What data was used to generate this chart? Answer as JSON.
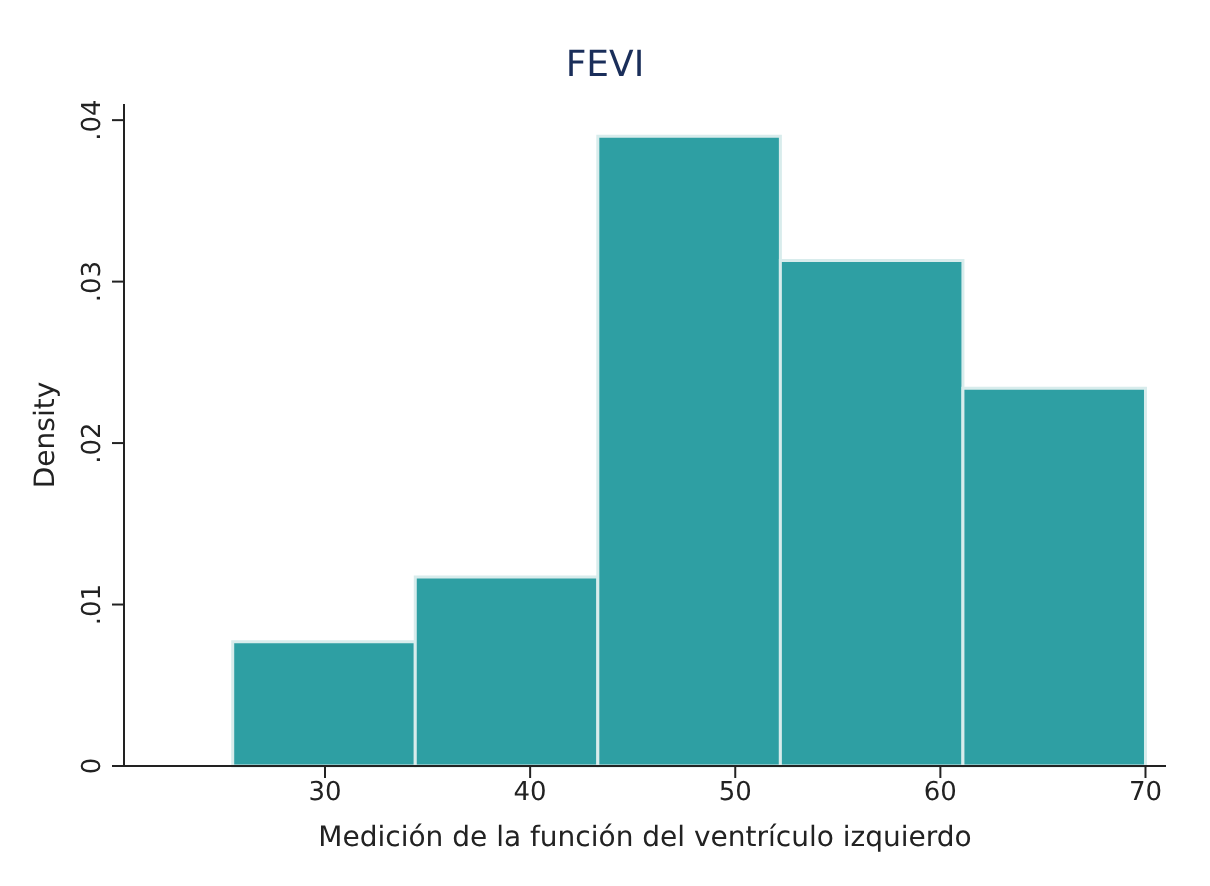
{
  "chart_data": {
    "type": "histogram",
    "title": "FEVI",
    "xlabel": "Medición de la función del ventrículo izquierdo",
    "ylabel": "Density",
    "bins": [
      25.5,
      34.4,
      43.3,
      52.2,
      61.1,
      70
    ],
    "values": [
      0.0077,
      0.0117,
      0.039,
      0.0313,
      0.0234
    ],
    "color": "#2e9fa3",
    "xlim": [
      20.2,
      71
    ],
    "xticks": [
      30,
      40,
      50,
      60,
      70
    ],
    "ylim": [
      0,
      0.041
    ],
    "yticks": [
      {
        "value": 0,
        "label": "0"
      },
      {
        "value": 0.01,
        "label": ".01"
      },
      {
        "value": 0.02,
        "label": ".02"
      },
      {
        "value": 0.03,
        "label": ".03"
      },
      {
        "value": 0.04,
        "label": ".04"
      }
    ],
    "grid": false
  }
}
